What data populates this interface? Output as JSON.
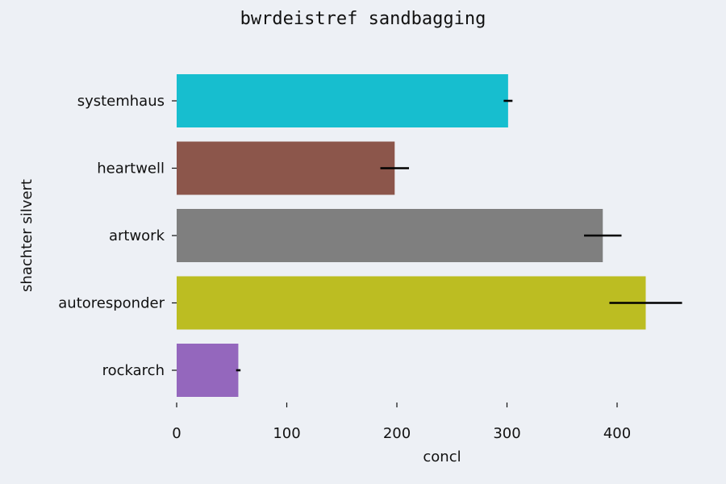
{
  "chart_data": {
    "type": "bar",
    "orientation": "horizontal",
    "title": "bwrdeistref sandbagging",
    "xlabel": "concl",
    "ylabel": "shachter silvert",
    "xlim": [
      0,
      470
    ],
    "xticks": [
      0,
      100,
      200,
      300,
      400
    ],
    "grid": false,
    "categories": [
      "systemhaus",
      "heartwell",
      "artwork",
      "autoresponder",
      "rockarch"
    ],
    "values": [
      301,
      198,
      387,
      426,
      56
    ],
    "errors": [
      4,
      13,
      17,
      33,
      2
    ],
    "colors": [
      "#17becf",
      "#8c564b",
      "#7f7f7f",
      "#bcbd22",
      "#9467bd"
    ]
  }
}
